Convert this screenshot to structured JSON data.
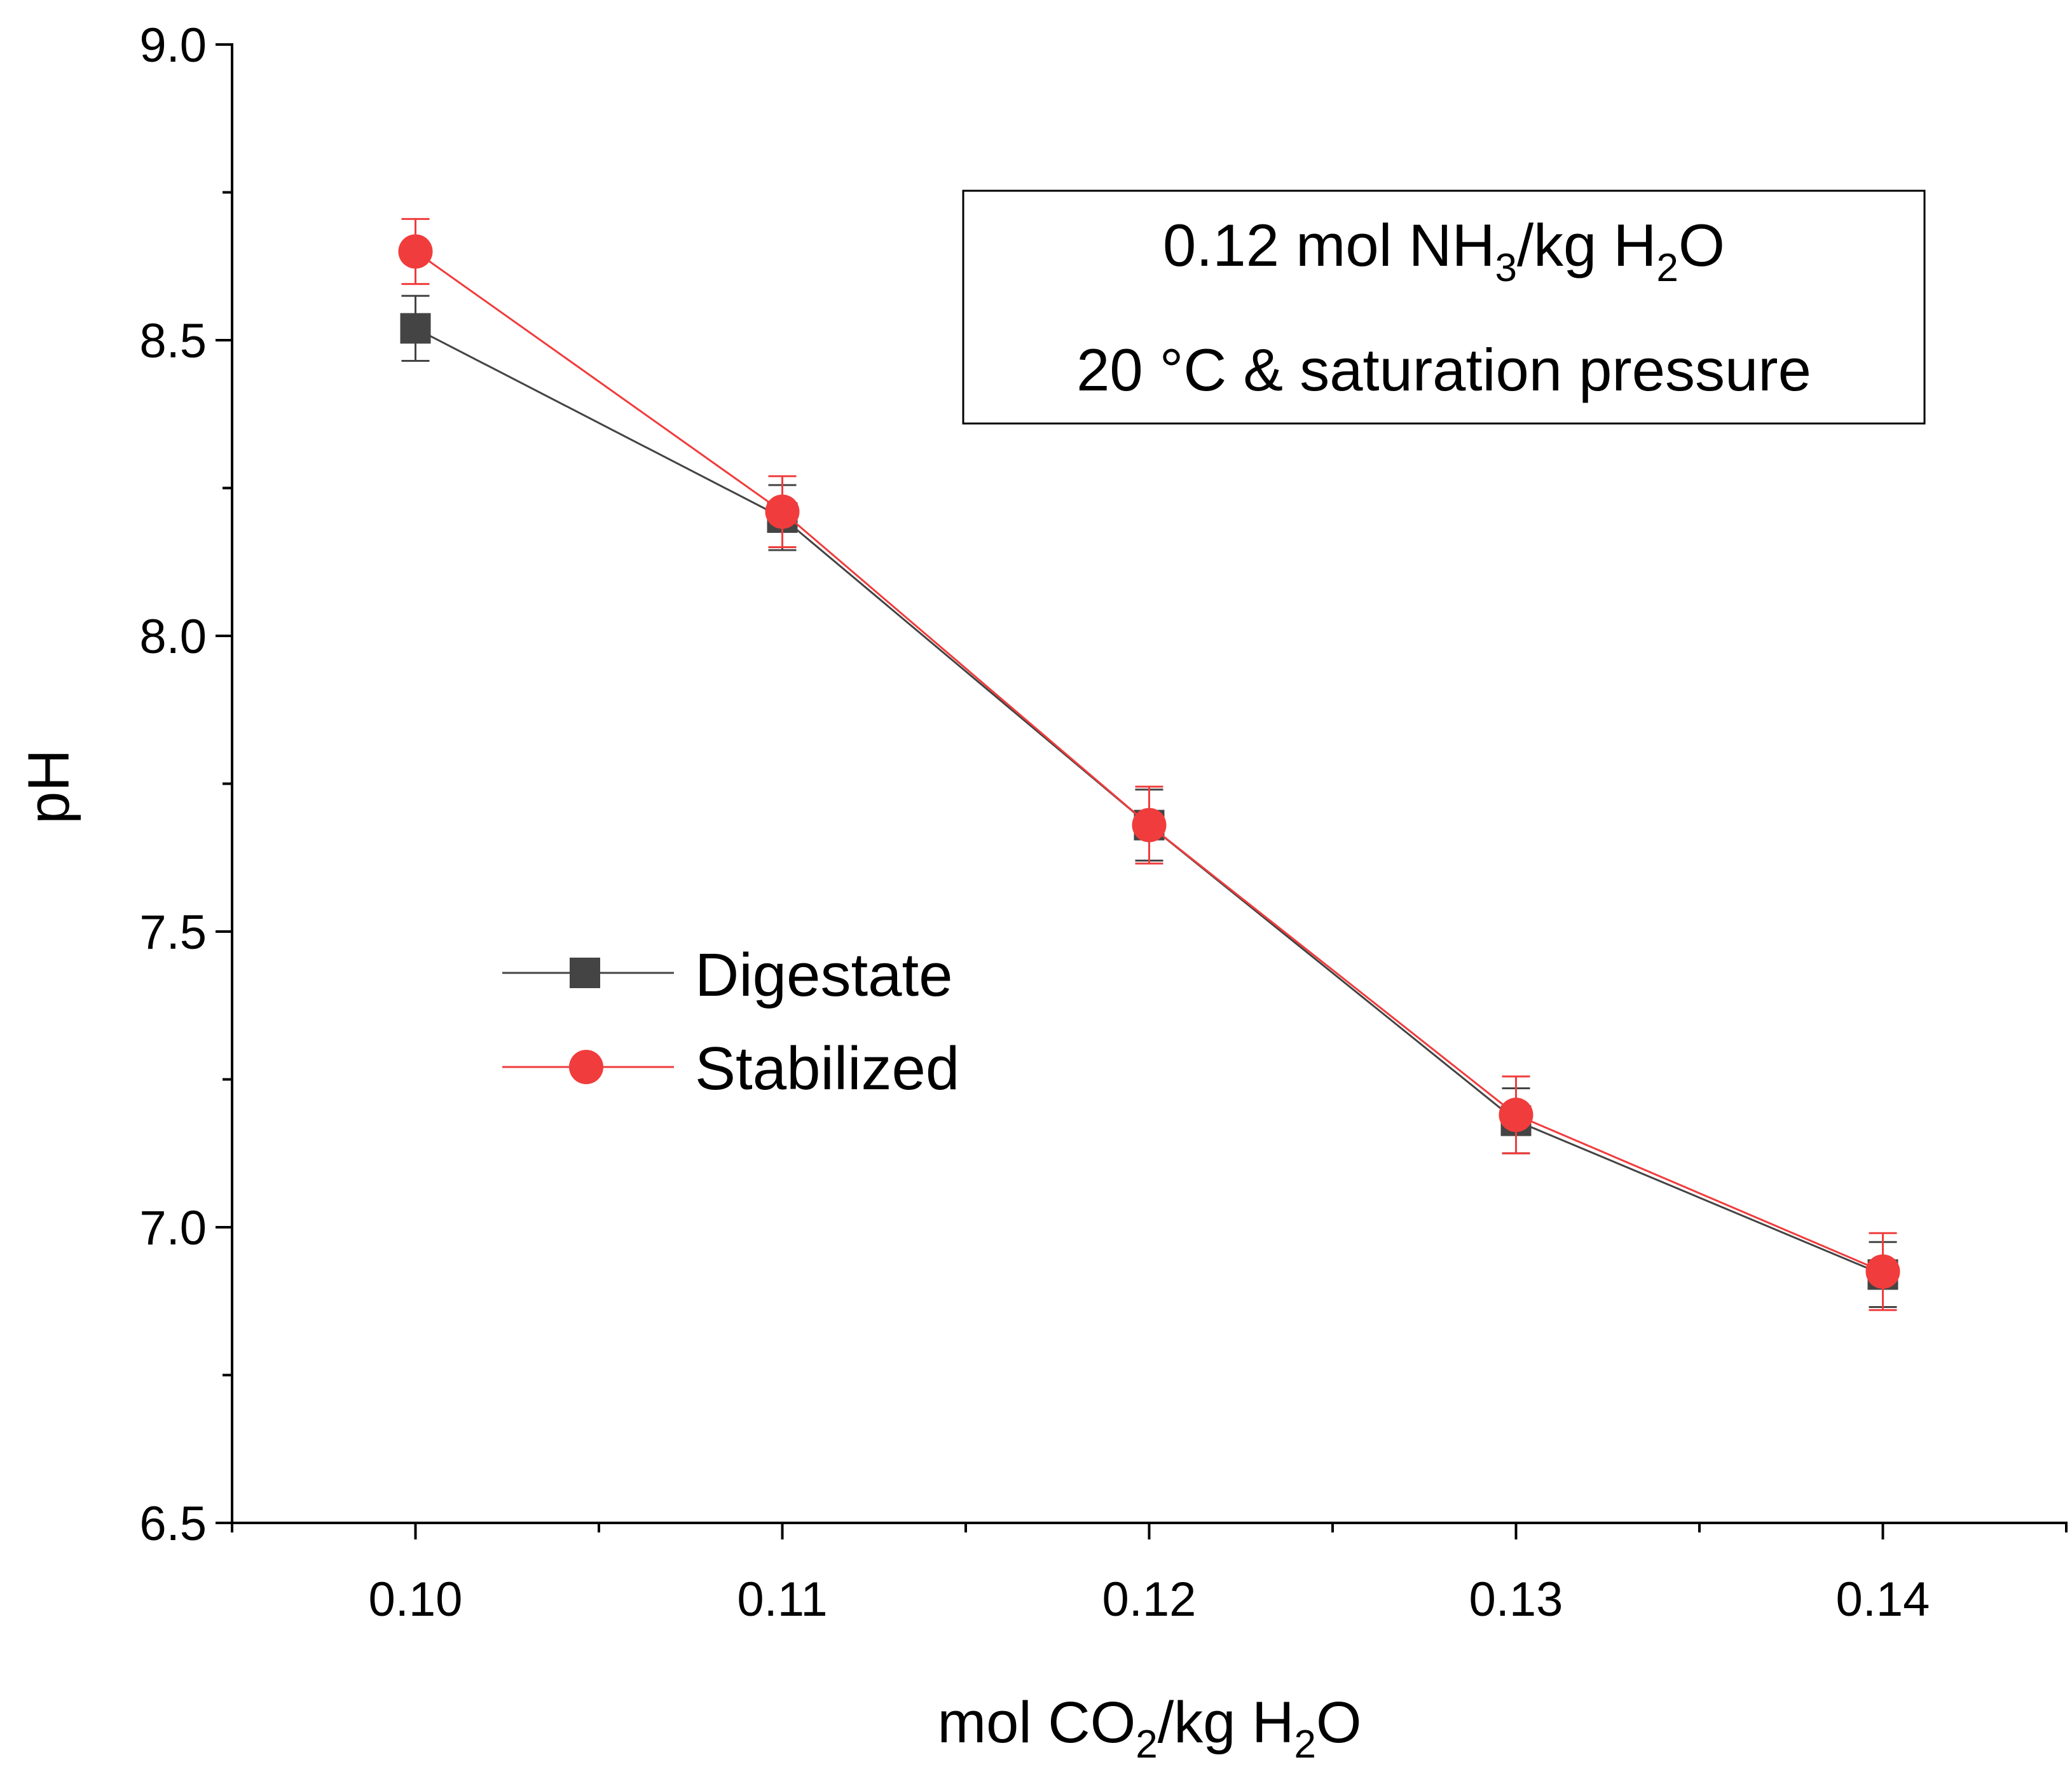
{
  "chart_data": {
    "type": "line",
    "xlabel_parts": [
      "mol CO",
      "2",
      "/kg H",
      "2",
      "O"
    ],
    "ylabel": "pH",
    "xlim": [
      0.095,
      0.145
    ],
    "ylim": [
      6.5,
      9.0
    ],
    "x_ticks": [
      0.1,
      0.11,
      0.12,
      0.13,
      0.14
    ],
    "x_tick_labels": [
      "0.10",
      "0.11",
      "0.12",
      "0.13",
      "0.14"
    ],
    "x_minor_ticks": [
      0.095,
      0.105,
      0.115,
      0.125,
      0.135,
      0.145
    ],
    "y_ticks": [
      6.5,
      7.0,
      7.5,
      8.0,
      8.5,
      9.0
    ],
    "y_tick_labels": [
      "6.5",
      "7.0",
      "7.5",
      "8.0",
      "8.5",
      "9.0"
    ],
    "y_minor_ticks": [
      6.75,
      7.25,
      7.75,
      8.25,
      8.75
    ],
    "grid": false,
    "legend_position": "middle-left",
    "annotation": {
      "line1_parts": [
        "0.12 mol NH",
        "3",
        "/kg H",
        "2",
        "O"
      ],
      "line2": "20 °C & saturation pressure"
    },
    "series": [
      {
        "name": "Digestate",
        "marker": "square",
        "color": "#444444",
        "x": [
          0.1,
          0.11,
          0.12,
          0.13,
          0.14
        ],
        "y": [
          8.52,
          8.2,
          7.68,
          7.18,
          6.92
        ],
        "err": [
          0.055,
          0.055,
          0.06,
          0.055,
          0.055
        ]
      },
      {
        "name": "Stabilized",
        "marker": "circle",
        "color": "#f03c3c",
        "x": [
          0.1,
          0.11,
          0.12,
          0.13,
          0.14
        ],
        "y": [
          8.65,
          8.21,
          7.68,
          7.19,
          6.925
        ],
        "err": [
          0.055,
          0.06,
          0.065,
          0.065,
          0.065
        ]
      }
    ]
  }
}
